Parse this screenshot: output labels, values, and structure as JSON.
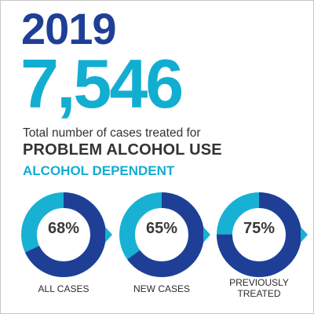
{
  "header": {
    "year": "2019",
    "total": "7,546",
    "subtitle_line1": "Total number of cases treated for",
    "subtitle_line2": "PROBLEM ALCOHOL USE",
    "section_heading": "ALCOHOL DEPENDENT"
  },
  "colors": {
    "year_text": "#1f3f97",
    "total_text": "#12aed1",
    "section_text": "#12aed1",
    "dark_text": "#333333",
    "donut_fill": "#1f3f97",
    "donut_track": "#18b1d3"
  },
  "chart_data": {
    "type": "pie",
    "series": [
      {
        "category": "ALL CASES",
        "value": 68,
        "label": "68%"
      },
      {
        "category": "NEW CASES",
        "value": 65,
        "label": "65%"
      },
      {
        "category": "PREVIOUSLY\nTREATED",
        "value": 75,
        "label": "75%"
      }
    ]
  }
}
